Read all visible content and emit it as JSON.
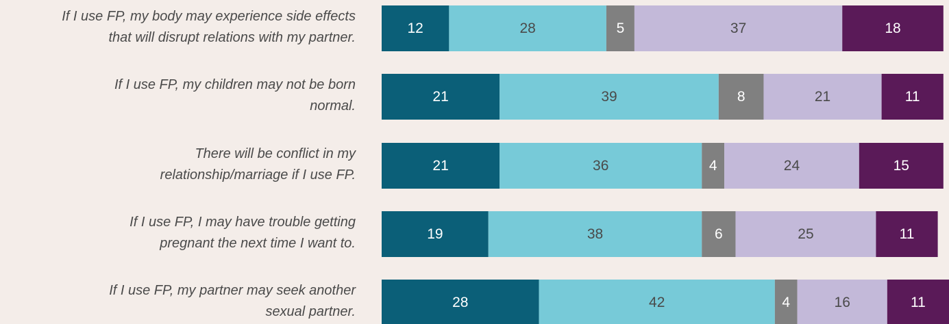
{
  "chart_data": {
    "type": "stacked_barh",
    "categories": [
      [
        "If I use FP, my body may experience side effects",
        "that will disrupt relations with my partner."
      ],
      [
        "If I use FP, my children may not be born",
        "normal."
      ],
      [
        "There will be conflict in my",
        "relationship/marriage if I use FP."
      ],
      [
        "If I use FP, I may have trouble getting",
        "pregnant the next time I want to."
      ],
      [
        "If I use FP, my partner may seek another",
        "sexual partner."
      ]
    ],
    "series": [
      {
        "color": "#0b5f78",
        "label_color": "#ffffff",
        "values": [
          12,
          21,
          21,
          19,
          28
        ]
      },
      {
        "color": "#77cad8",
        "label_color": "#4a4a4a",
        "values": [
          28,
          39,
          36,
          38,
          42
        ]
      },
      {
        "color": "#808080",
        "label_color": "#ffffff",
        "values": [
          5,
          8,
          4,
          6,
          4
        ]
      },
      {
        "color": "#c3b9d9",
        "label_color": "#4a4a4a",
        "values": [
          37,
          21,
          24,
          25,
          16
        ]
      },
      {
        "color": "#5a1a58",
        "label_color": "#ffffff",
        "values": [
          18,
          11,
          15,
          11,
          11
        ]
      }
    ],
    "xlim": [
      0,
      101
    ]
  }
}
